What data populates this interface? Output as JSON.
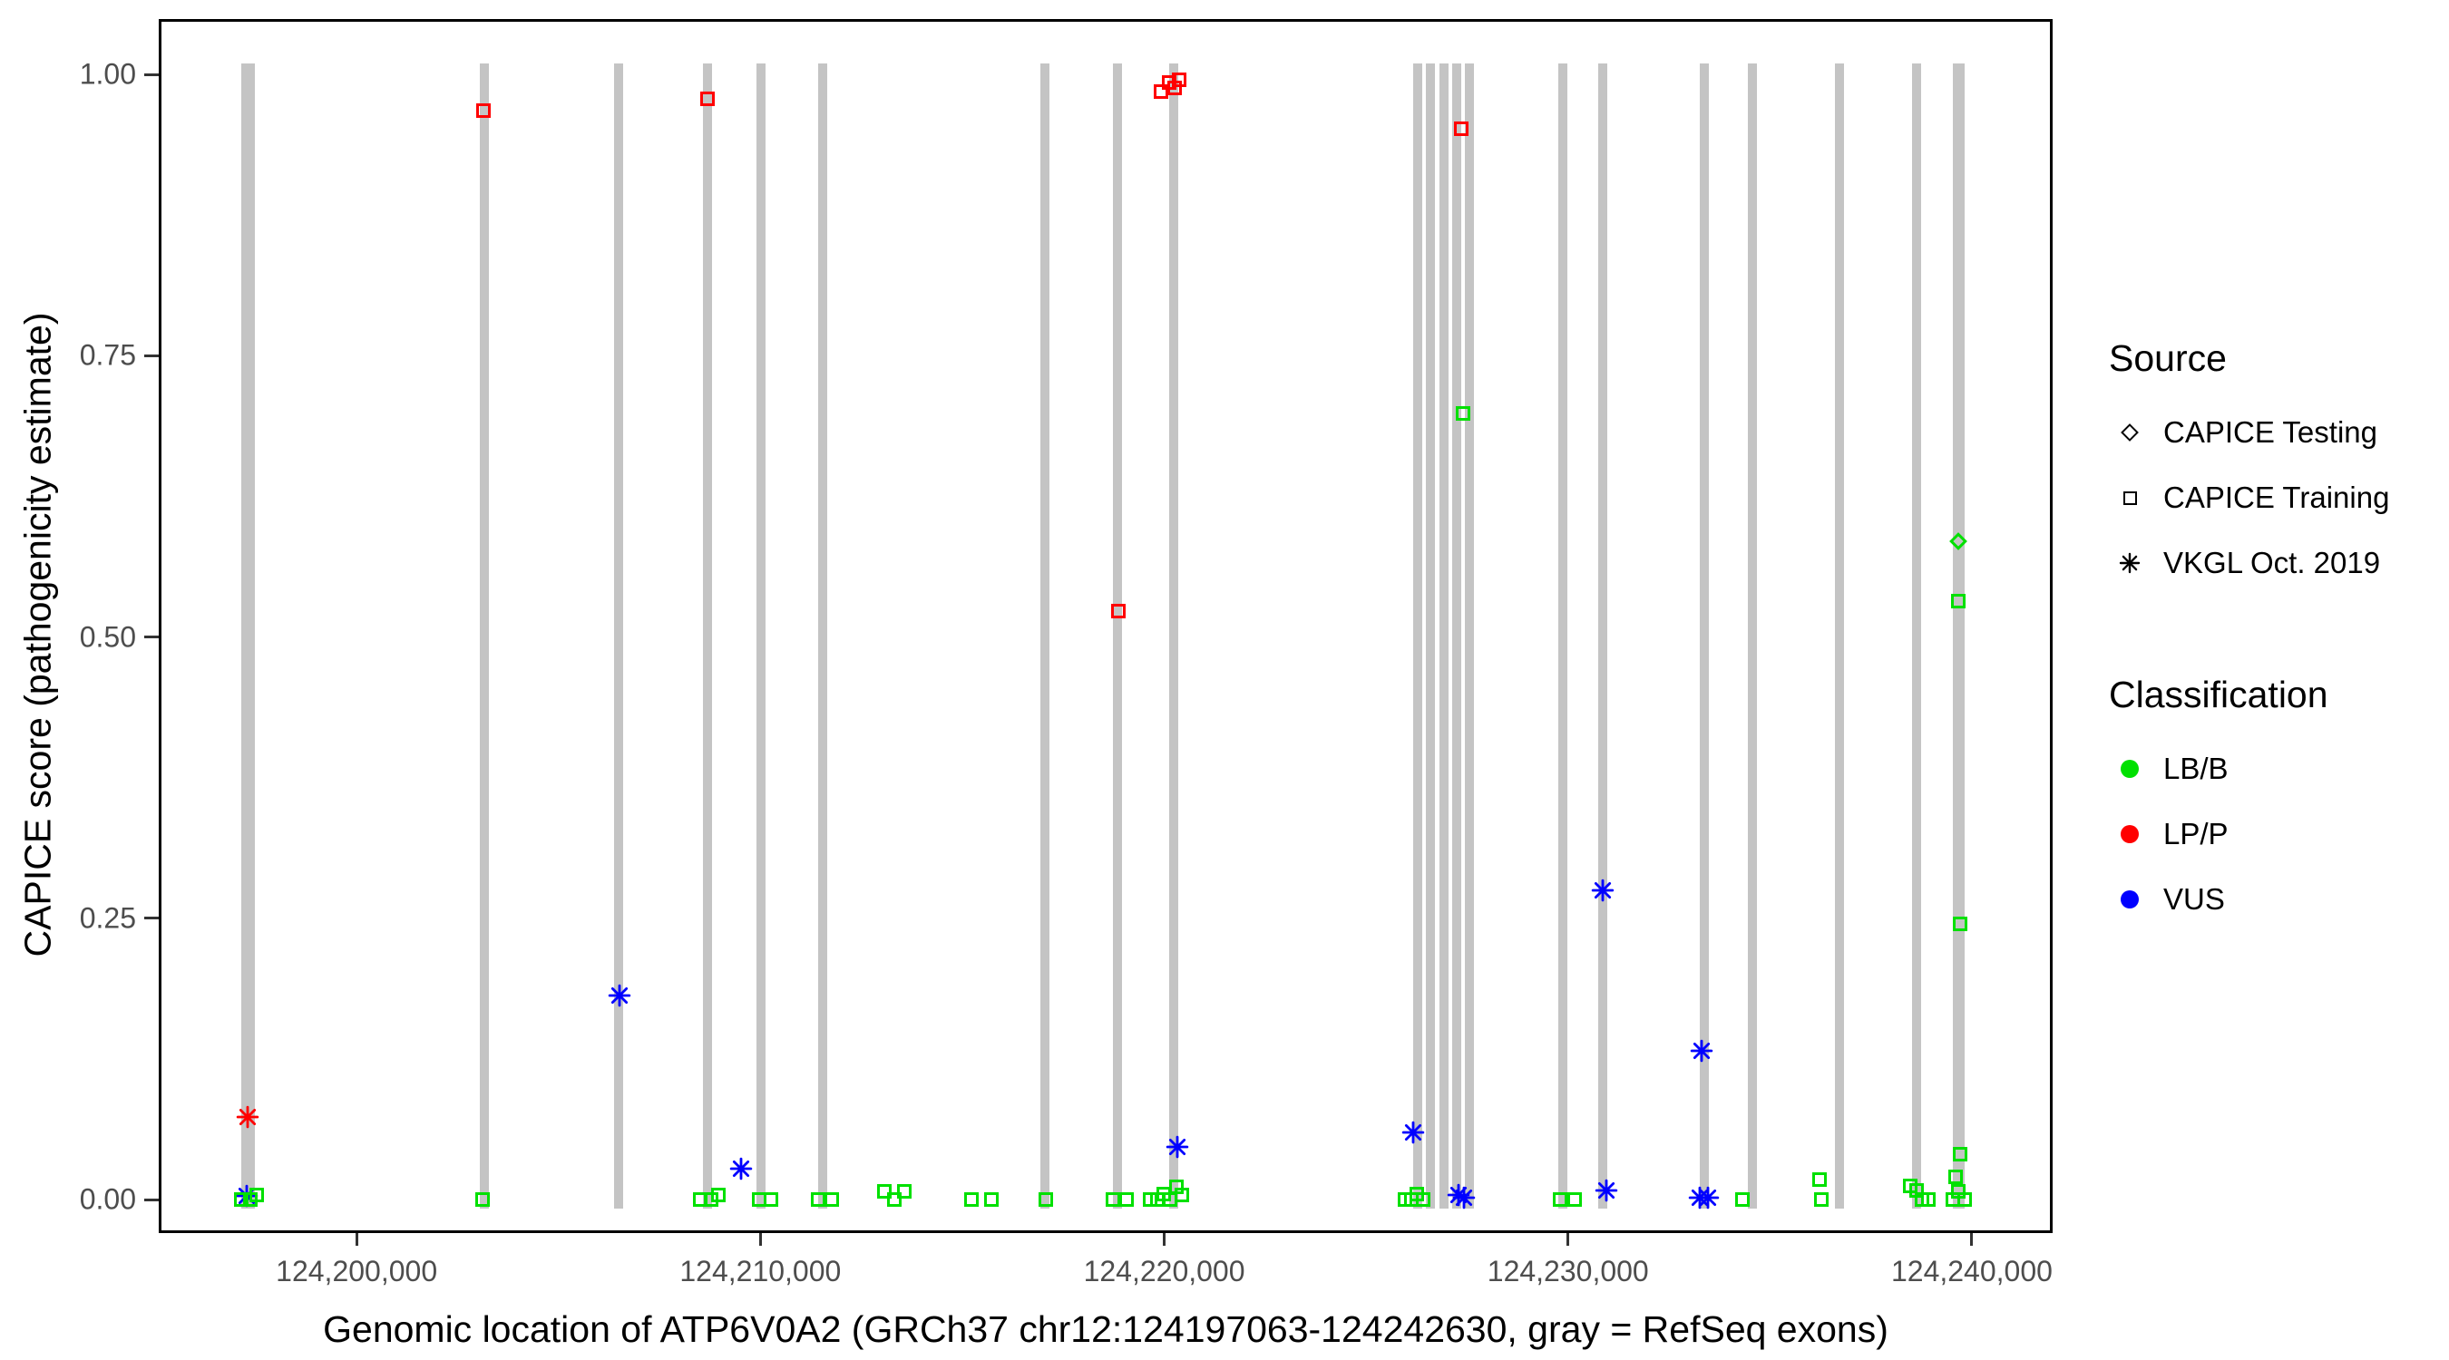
{
  "chart_data": {
    "type": "scatter",
    "title": "",
    "xlabel": "Genomic location of ATP6V0A2 (GRCh37 chr12:124197063-124242630, gray = RefSeq exons)",
    "ylabel": "CAPICE score (pathogenicity estimate)",
    "x_domain": [
      124195100,
      124242000
    ],
    "y_domain": [
      0,
      1
    ],
    "grid": "off",
    "legend_position": "right",
    "x_ticks": [
      {
        "value": 124200000,
        "label": "124,200,000"
      },
      {
        "value": 124210000,
        "label": "124,210,000"
      },
      {
        "value": 124220000,
        "label": "124,220,000"
      },
      {
        "value": 124230000,
        "label": "124,230,000"
      },
      {
        "value": 124240000,
        "label": "124,240,000"
      }
    ],
    "y_ticks": [
      {
        "value": 0.0,
        "label": "0.00"
      },
      {
        "value": 0.25,
        "label": "0.25"
      },
      {
        "value": 0.5,
        "label": "0.50"
      },
      {
        "value": 0.75,
        "label": "0.75"
      },
      {
        "value": 1.0,
        "label": "1.00"
      }
    ],
    "refseq_exons": [
      [
        124197150,
        124197480
      ],
      [
        124203050,
        124203280
      ],
      [
        124206400,
        124206590
      ],
      [
        124208580,
        124208790
      ],
      [
        124209900,
        124210110
      ],
      [
        124211430,
        124211650
      ],
      [
        124216950,
        124217150
      ],
      [
        124218750,
        124218950
      ],
      [
        124220120,
        124220340
      ],
      [
        124226160,
        124226400
      ],
      [
        124226480,
        124226700
      ],
      [
        124226810,
        124227030
      ],
      [
        124227140,
        124227350
      ],
      [
        124227460,
        124227670
      ],
      [
        124229760,
        124229960
      ],
      [
        124230740,
        124230960
      ],
      [
        124233270,
        124233490
      ],
      [
        124234450,
        124234670
      ],
      [
        124236610,
        124236830
      ],
      [
        124238530,
        124238740
      ],
      [
        124239540,
        124239820
      ]
    ],
    "points": [
      {
        "g": 124197300,
        "score": 0.073,
        "shape": "asterisk",
        "cls": "LP/P"
      },
      {
        "g": 124197280,
        "score": 0.003,
        "shape": "asterisk",
        "cls": "VUS"
      },
      {
        "g": 124197150,
        "score": 0.0,
        "shape": "square",
        "cls": "LB/B"
      },
      {
        "g": 124197360,
        "score": 0.0,
        "shape": "square",
        "cls": "LB/B"
      },
      {
        "g": 124197520,
        "score": 0.004,
        "shape": "square",
        "cls": "LB/B"
      },
      {
        "g": 124203150,
        "score": 0.968,
        "shape": "square",
        "cls": "LP/P"
      },
      {
        "g": 124203120,
        "score": 0.0,
        "shape": "square",
        "cls": "LB/B"
      },
      {
        "g": 124206500,
        "score": 0.181,
        "shape": "asterisk",
        "cls": "VUS"
      },
      {
        "g": 124208700,
        "score": 0.978,
        "shape": "square",
        "cls": "LP/P"
      },
      {
        "g": 124208520,
        "score": 0.0,
        "shape": "square",
        "cls": "LB/B"
      },
      {
        "g": 124208780,
        "score": 0.0,
        "shape": "square",
        "cls": "LB/B"
      },
      {
        "g": 124208960,
        "score": 0.004,
        "shape": "square",
        "cls": "LB/B"
      },
      {
        "g": 124209530,
        "score": 0.027,
        "shape": "asterisk",
        "cls": "VUS"
      },
      {
        "g": 124209960,
        "score": 0.0,
        "shape": "square",
        "cls": "LB/B"
      },
      {
        "g": 124210260,
        "score": 0.0,
        "shape": "square",
        "cls": "LB/B"
      },
      {
        "g": 124211420,
        "score": 0.0,
        "shape": "square",
        "cls": "LB/B"
      },
      {
        "g": 124211760,
        "score": 0.0,
        "shape": "square",
        "cls": "LB/B"
      },
      {
        "g": 124213060,
        "score": 0.007,
        "shape": "square",
        "cls": "LB/B"
      },
      {
        "g": 124213310,
        "score": 0.0,
        "shape": "square",
        "cls": "LB/B"
      },
      {
        "g": 124213560,
        "score": 0.007,
        "shape": "square",
        "cls": "LB/B"
      },
      {
        "g": 124215220,
        "score": 0.0,
        "shape": "square",
        "cls": "LB/B"
      },
      {
        "g": 124215720,
        "score": 0.0,
        "shape": "square",
        "cls": "LB/B"
      },
      {
        "g": 124217060,
        "score": 0.0,
        "shape": "square",
        "cls": "LB/B"
      },
      {
        "g": 124218860,
        "score": 0.523,
        "shape": "square",
        "cls": "LP/P"
      },
      {
        "g": 124218720,
        "score": 0.0,
        "shape": "square",
        "cls": "LB/B"
      },
      {
        "g": 124219060,
        "score": 0.0,
        "shape": "square",
        "cls": "LB/B"
      },
      {
        "g": 124219930,
        "score": 0.985,
        "shape": "square",
        "cls": "LP/P"
      },
      {
        "g": 124220120,
        "score": 0.993,
        "shape": "square",
        "cls": "LP/P"
      },
      {
        "g": 124220260,
        "score": 0.988,
        "shape": "square",
        "cls": "LP/P"
      },
      {
        "g": 124220360,
        "score": 0.995,
        "shape": "square",
        "cls": "LP/P"
      },
      {
        "g": 124220320,
        "score": 0.047,
        "shape": "asterisk",
        "cls": "VUS"
      },
      {
        "g": 124219660,
        "score": 0.0,
        "shape": "square",
        "cls": "LB/B"
      },
      {
        "g": 124219820,
        "score": 0.0,
        "shape": "square",
        "cls": "LB/B"
      },
      {
        "g": 124219980,
        "score": 0.005,
        "shape": "square",
        "cls": "LB/B"
      },
      {
        "g": 124220140,
        "score": 0.0,
        "shape": "square",
        "cls": "LB/B"
      },
      {
        "g": 124220300,
        "score": 0.011,
        "shape": "square",
        "cls": "LB/B"
      },
      {
        "g": 124220440,
        "score": 0.004,
        "shape": "square",
        "cls": "LB/B"
      },
      {
        "g": 124226160,
        "score": 0.06,
        "shape": "asterisk",
        "cls": "VUS"
      },
      {
        "g": 124225960,
        "score": 0.0,
        "shape": "square",
        "cls": "LB/B"
      },
      {
        "g": 124226110,
        "score": 0.0,
        "shape": "square",
        "cls": "LB/B"
      },
      {
        "g": 124226260,
        "score": 0.005,
        "shape": "square",
        "cls": "LB/B"
      },
      {
        "g": 124226410,
        "score": 0.0,
        "shape": "square",
        "cls": "LB/B"
      },
      {
        "g": 124227290,
        "score": 0.004,
        "shape": "asterisk",
        "cls": "VUS"
      },
      {
        "g": 124227420,
        "score": 0.002,
        "shape": "asterisk",
        "cls": "VUS"
      },
      {
        "g": 124227360,
        "score": 0.952,
        "shape": "square",
        "cls": "LP/P"
      },
      {
        "g": 124227400,
        "score": 0.699,
        "shape": "square",
        "cls": "LB/B"
      },
      {
        "g": 124229810,
        "score": 0.0,
        "shape": "square",
        "cls": "LB/B"
      },
      {
        "g": 124230160,
        "score": 0.0,
        "shape": "square",
        "cls": "LB/B"
      },
      {
        "g": 124230860,
        "score": 0.275,
        "shape": "asterisk",
        "cls": "VUS"
      },
      {
        "g": 124230960,
        "score": 0.008,
        "shape": "asterisk",
        "cls": "VUS"
      },
      {
        "g": 124233300,
        "score": 0.132,
        "shape": "asterisk",
        "cls": "VUS"
      },
      {
        "g": 124233260,
        "score": 0.002,
        "shape": "asterisk",
        "cls": "VUS"
      },
      {
        "g": 124233460,
        "score": 0.002,
        "shape": "asterisk",
        "cls": "VUS"
      },
      {
        "g": 124234320,
        "score": 0.0,
        "shape": "square",
        "cls": "LB/B"
      },
      {
        "g": 124236220,
        "score": 0.018,
        "shape": "square",
        "cls": "LB/B"
      },
      {
        "g": 124236270,
        "score": 0.0,
        "shape": "square",
        "cls": "LB/B"
      },
      {
        "g": 124238470,
        "score": 0.012,
        "shape": "square",
        "cls": "LB/B"
      },
      {
        "g": 124238620,
        "score": 0.008,
        "shape": "square",
        "cls": "LB/B"
      },
      {
        "g": 124238770,
        "score": 0.0,
        "shape": "square",
        "cls": "LB/B"
      },
      {
        "g": 124238920,
        "score": 0.0,
        "shape": "square",
        "cls": "LB/B"
      },
      {
        "g": 124239660,
        "score": 0.585,
        "shape": "diamond",
        "cls": "LB/B"
      },
      {
        "g": 124239660,
        "score": 0.532,
        "shape": "square",
        "cls": "LB/B"
      },
      {
        "g": 124239700,
        "score": 0.245,
        "shape": "square",
        "cls": "LB/B"
      },
      {
        "g": 124239700,
        "score": 0.04,
        "shape": "square",
        "cls": "LB/B"
      },
      {
        "g": 124239600,
        "score": 0.02,
        "shape": "square",
        "cls": "LB/B"
      },
      {
        "g": 124239660,
        "score": 0.007,
        "shape": "square",
        "cls": "LB/B"
      },
      {
        "g": 124239520,
        "score": 0.0,
        "shape": "square",
        "cls": "LB/B"
      },
      {
        "g": 124239820,
        "score": 0.0,
        "shape": "square",
        "cls": "LB/B"
      }
    ]
  },
  "legend": {
    "source": {
      "title": "Source",
      "items": [
        {
          "shape": "diamond",
          "label": "CAPICE Testing"
        },
        {
          "shape": "square",
          "label": "CAPICE Training"
        },
        {
          "shape": "asterisk",
          "label": "VKGL Oct. 2019"
        }
      ]
    },
    "classification": {
      "title": "Classification",
      "items": [
        {
          "cls": "LB/B",
          "label": "LB/B"
        },
        {
          "cls": "LP/P",
          "label": "LP/P"
        },
        {
          "cls": "VUS",
          "label": "VUS"
        }
      ]
    }
  },
  "colors": {
    "LB/B": "#00E000",
    "LP/P": "#FF0000",
    "VUS": "#0000FF",
    "exon": "#C4C4C4",
    "axis_text": "#4d4d4d",
    "title_text": "#000000"
  }
}
